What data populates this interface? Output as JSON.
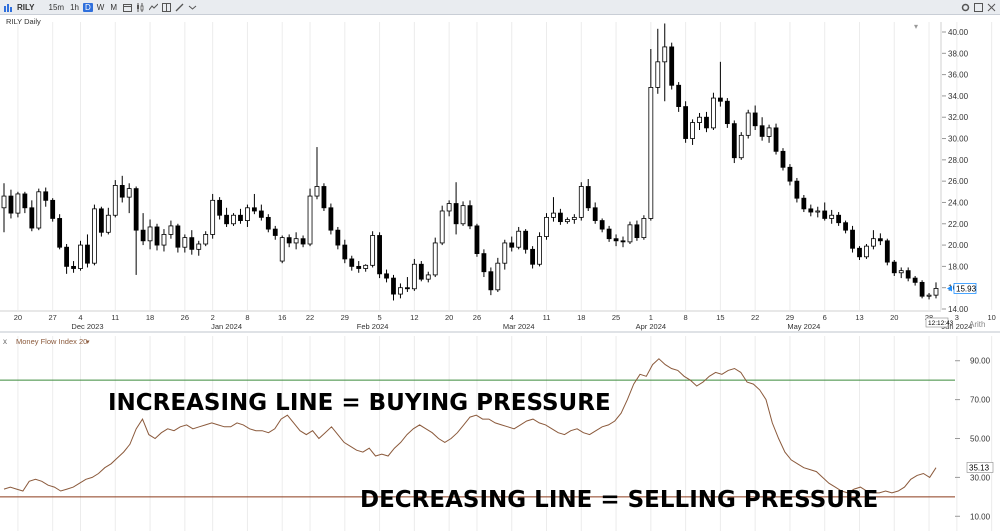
{
  "toolbar": {
    "symbol": "RILY",
    "intervals": [
      "15m",
      "1h",
      "D",
      "W",
      "M"
    ],
    "active_interval": "D"
  },
  "price_panel": {
    "title": "RILY Daily",
    "last_price": "15.93",
    "timestamp": "12:12:43",
    "scale_label": "Arith",
    "colors": {
      "up": "#ffffff",
      "down": "#000000",
      "current_marker": "#1e90ff"
    }
  },
  "mfi_panel": {
    "title": "Money Flow Index 20",
    "last_value": "35.13",
    "overbought": 80,
    "oversold": 20,
    "colors": {
      "line": "#8b5a3c",
      "overbought": "#3a8a3a",
      "oversold": "#8b3a1a"
    }
  },
  "annotations": {
    "buying": "INCREASING LINE = BUYING PRESSURE",
    "selling": "DECREASING LINE = SELLING PRESSURE"
  },
  "chart_data": [
    {
      "type": "candlestick",
      "title": "RILY Daily",
      "ylim": [
        14,
        40
      ],
      "y_ticks": [
        "40.00",
        "38.00",
        "36.00",
        "34.00",
        "32.00",
        "30.00",
        "28.00",
        "26.00",
        "24.00",
        "22.00",
        "20.00",
        "18.00",
        "16.00",
        "14.00"
      ],
      "x_tick_labels": [
        {
          "d": 2,
          "label": "20"
        },
        {
          "d": 7,
          "label": "27"
        },
        {
          "d": 11,
          "label": "4"
        },
        {
          "d": 16,
          "label": "11"
        },
        {
          "d": 21,
          "label": "18"
        },
        {
          "d": 26,
          "label": "26"
        },
        {
          "d": 30,
          "label": "2"
        },
        {
          "d": 35,
          "label": "8"
        },
        {
          "d": 40,
          "label": "16"
        },
        {
          "d": 44,
          "label": "22"
        },
        {
          "d": 49,
          "label": "29"
        },
        {
          "d": 54,
          "label": "5"
        },
        {
          "d": 59,
          "label": "12"
        },
        {
          "d": 64,
          "label": "20"
        },
        {
          "d": 68,
          "label": "26"
        },
        {
          "d": 73,
          "label": "4"
        },
        {
          "d": 78,
          "label": "11"
        },
        {
          "d": 83,
          "label": "18"
        },
        {
          "d": 88,
          "label": "25"
        },
        {
          "d": 93,
          "label": "1"
        },
        {
          "d": 98,
          "label": "8"
        },
        {
          "d": 103,
          "label": "15"
        },
        {
          "d": 108,
          "label": "22"
        },
        {
          "d": 113,
          "label": "29"
        },
        {
          "d": 118,
          "label": "6"
        },
        {
          "d": 123,
          "label": "13"
        },
        {
          "d": 128,
          "label": "20"
        },
        {
          "d": 133,
          "label": "28"
        },
        {
          "d": 137,
          "label": "3"
        },
        {
          "d": 142,
          "label": "10"
        },
        {
          "d": 147,
          "label": "17"
        },
        {
          "d": 152,
          "label": "24"
        },
        {
          "d": 157,
          "label": "1"
        }
      ],
      "month_labels": [
        {
          "d": 12,
          "label": "Dec 2023"
        },
        {
          "d": 32,
          "label": "Jan 2024"
        },
        {
          "d": 53,
          "label": "Feb 2024"
        },
        {
          "d": 74,
          "label": "Mar 2024"
        },
        {
          "d": 93,
          "label": "Apr 2024"
        },
        {
          "d": 115,
          "label": "May 2024"
        },
        {
          "d": 137,
          "label": "Jun 2024"
        }
      ],
      "candles": [
        [
          23.5,
          25.8,
          21.2,
          24.6
        ],
        [
          24.6,
          25.2,
          22.5,
          23.0
        ],
        [
          23.0,
          25.0,
          22.6,
          24.8
        ],
        [
          24.8,
          25.0,
          23.0,
          23.5
        ],
        [
          23.5,
          24.2,
          21.3,
          21.6
        ],
        [
          21.6,
          25.3,
          21.4,
          25.0
        ],
        [
          25.0,
          25.4,
          23.6,
          24.2
        ],
        [
          24.2,
          24.4,
          22.2,
          22.5
        ],
        [
          22.5,
          22.9,
          19.6,
          19.8
        ],
        [
          19.8,
          20.1,
          17.3,
          18.0
        ],
        [
          18.0,
          18.5,
          17.4,
          17.8
        ],
        [
          17.8,
          20.4,
          17.6,
          20.0
        ],
        [
          20.0,
          21.0,
          17.9,
          18.3
        ],
        [
          18.3,
          23.8,
          18.1,
          23.4
        ],
        [
          23.4,
          23.6,
          20.8,
          21.2
        ],
        [
          21.2,
          23.5,
          21.0,
          22.8
        ],
        [
          22.8,
          26.1,
          22.6,
          25.6
        ],
        [
          25.6,
          26.5,
          24.0,
          24.5
        ],
        [
          24.5,
          25.8,
          23.0,
          25.3
        ],
        [
          25.3,
          25.5,
          17.2,
          21.4
        ],
        [
          21.4,
          23.0,
          20.0,
          20.4
        ],
        [
          20.4,
          22.4,
          19.6,
          21.7
        ],
        [
          21.7,
          22.0,
          19.5,
          20.0
        ],
        [
          20.0,
          21.5,
          19.4,
          21.0
        ],
        [
          21.0,
          22.3,
          20.6,
          21.8
        ],
        [
          21.8,
          22.0,
          19.3,
          19.8
        ],
        [
          19.8,
          21.0,
          19.3,
          20.7
        ],
        [
          20.7,
          21.4,
          19.1,
          19.6
        ],
        [
          19.6,
          20.4,
          19.0,
          20.1
        ],
        [
          20.1,
          21.3,
          19.9,
          21.0
        ],
        [
          21.0,
          24.8,
          20.6,
          24.2
        ],
        [
          24.2,
          24.5,
          22.4,
          22.8
        ],
        [
          22.8,
          23.5,
          21.7,
          22.0
        ],
        [
          22.0,
          23.0,
          21.8,
          22.8
        ],
        [
          22.8,
          23.4,
          22.0,
          22.3
        ],
        [
          22.3,
          23.8,
          21.7,
          23.5
        ],
        [
          23.5,
          24.8,
          22.9,
          23.2
        ],
        [
          23.2,
          23.8,
          22.3,
          22.6
        ],
        [
          22.6,
          22.9,
          21.2,
          21.5
        ],
        [
          21.5,
          21.8,
          20.5,
          20.9
        ],
        [
          18.5,
          20.9,
          18.3,
          20.7
        ],
        [
          20.7,
          21.0,
          19.8,
          20.2
        ],
        [
          20.2,
          21.2,
          19.6,
          20.6
        ],
        [
          20.6,
          20.9,
          19.8,
          20.1
        ],
        [
          20.1,
          25.3,
          19.9,
          24.6
        ],
        [
          24.6,
          29.2,
          24.3,
          25.5
        ],
        [
          25.5,
          25.8,
          23.2,
          23.5
        ],
        [
          23.5,
          23.9,
          21.0,
          21.4
        ],
        [
          21.4,
          21.7,
          19.6,
          20.0
        ],
        [
          20.0,
          20.5,
          18.3,
          18.7
        ],
        [
          18.7,
          19.0,
          17.6,
          18.0
        ],
        [
          18.0,
          18.5,
          17.4,
          17.8
        ],
        [
          17.8,
          18.2,
          17.5,
          18.1
        ],
        [
          18.1,
          21.3,
          17.9,
          20.9
        ],
        [
          20.9,
          21.2,
          16.9,
          17.3
        ],
        [
          17.3,
          17.7,
          16.5,
          16.9
        ],
        [
          16.9,
          17.2,
          14.8,
          15.4
        ],
        [
          15.4,
          16.4,
          15.0,
          16.0
        ],
        [
          16.0,
          17.0,
          15.6,
          15.9
        ],
        [
          15.9,
          18.7,
          15.7,
          18.2
        ],
        [
          18.2,
          18.5,
          16.6,
          16.8
        ],
        [
          16.8,
          17.5,
          16.5,
          17.2
        ],
        [
          17.2,
          20.7,
          17.0,
          20.2
        ],
        [
          20.2,
          23.7,
          20.0,
          23.2
        ],
        [
          23.2,
          24.2,
          22.7,
          23.9
        ],
        [
          23.9,
          25.9,
          21.0,
          22.0
        ],
        [
          22.0,
          24.1,
          21.8,
          23.7
        ],
        [
          23.7,
          24.2,
          21.5,
          21.8
        ],
        [
          21.8,
          22.0,
          18.9,
          19.2
        ],
        [
          19.2,
          19.6,
          17.0,
          17.5
        ],
        [
          17.5,
          17.9,
          15.3,
          15.8
        ],
        [
          15.8,
          18.8,
          15.6,
          18.3
        ],
        [
          18.3,
          20.5,
          17.7,
          20.2
        ],
        [
          20.2,
          20.8,
          19.4,
          19.8
        ],
        [
          19.8,
          21.7,
          19.6,
          21.3
        ],
        [
          21.3,
          21.5,
          19.2,
          19.6
        ],
        [
          19.6,
          19.9,
          17.8,
          18.2
        ],
        [
          18.2,
          21.2,
          18.0,
          20.8
        ],
        [
          20.8,
          23.0,
          20.5,
          22.6
        ],
        [
          22.6,
          24.5,
          22.2,
          23.0
        ],
        [
          23.0,
          23.4,
          21.9,
          22.2
        ],
        [
          22.2,
          22.6,
          22.0,
          22.4
        ],
        [
          22.4,
          22.9,
          22.0,
          22.6
        ],
        [
          22.6,
          25.9,
          22.3,
          25.5
        ],
        [
          25.5,
          26.2,
          23.2,
          23.5
        ],
        [
          23.5,
          24.0,
          22.0,
          22.3
        ],
        [
          22.3,
          22.5,
          21.2,
          21.5
        ],
        [
          21.5,
          21.8,
          20.3,
          20.6
        ],
        [
          20.6,
          21.0,
          19.9,
          20.4
        ],
        [
          20.4,
          20.8,
          19.8,
          20.3
        ],
        [
          20.3,
          22.2,
          20.1,
          21.9
        ],
        [
          21.9,
          22.3,
          20.4,
          20.7
        ],
        [
          20.7,
          22.8,
          20.5,
          22.5
        ],
        [
          22.5,
          38.4,
          22.3,
          34.8
        ],
        [
          34.8,
          40.3,
          34.2,
          37.2
        ],
        [
          37.2,
          40.8,
          33.5,
          38.6
        ],
        [
          38.6,
          39.0,
          34.6,
          35.0
        ],
        [
          35.0,
          35.3,
          32.5,
          33.0
        ],
        [
          33.0,
          33.5,
          29.6,
          30.0
        ],
        [
          30.0,
          31.8,
          29.4,
          31.5
        ],
        [
          31.5,
          32.4,
          30.8,
          32.0
        ],
        [
          32.0,
          32.5,
          30.6,
          31.0
        ],
        [
          31.0,
          34.3,
          30.8,
          33.8
        ],
        [
          33.8,
          37.2,
          33.0,
          33.5
        ],
        [
          33.5,
          33.8,
          31.0,
          31.4
        ],
        [
          31.4,
          31.7,
          27.7,
          28.2
        ],
        [
          28.2,
          30.6,
          28.0,
          30.3
        ],
        [
          30.3,
          32.7,
          30.0,
          32.4
        ],
        [
          32.4,
          33.1,
          30.8,
          31.2
        ],
        [
          31.2,
          32.0,
          29.8,
          30.2
        ],
        [
          30.2,
          31.3,
          29.6,
          31.0
        ],
        [
          31.0,
          31.4,
          28.5,
          28.8
        ],
        [
          28.8,
          29.1,
          27.0,
          27.3
        ],
        [
          27.3,
          27.6,
          25.6,
          26.0
        ],
        [
          26.0,
          26.3,
          24.0,
          24.4
        ],
        [
          24.4,
          24.7,
          23.1,
          23.4
        ],
        [
          23.4,
          23.8,
          22.7,
          23.1
        ],
        [
          23.1,
          23.6,
          22.6,
          23.2
        ],
        [
          23.2,
          24.0,
          22.3,
          22.5
        ],
        [
          22.5,
          23.3,
          22.0,
          22.8
        ],
        [
          22.8,
          23.1,
          21.8,
          22.1
        ],
        [
          22.1,
          22.3,
          21.1,
          21.4
        ],
        [
          21.4,
          21.8,
          19.3,
          19.7
        ],
        [
          19.7,
          19.9,
          18.6,
          18.9
        ],
        [
          18.9,
          20.1,
          18.7,
          19.9
        ],
        [
          19.9,
          21.4,
          19.6,
          20.6
        ],
        [
          20.6,
          21.1,
          20.0,
          20.4
        ],
        [
          20.4,
          20.6,
          18.1,
          18.4
        ],
        [
          18.4,
          18.6,
          17.1,
          17.4
        ],
        [
          17.4,
          17.9,
          16.9,
          17.6
        ],
        [
          17.6,
          17.9,
          16.6,
          16.9
        ],
        [
          16.9,
          17.1,
          16.2,
          16.5
        ],
        [
          16.5,
          16.7,
          15.0,
          15.2
        ],
        [
          15.2,
          15.5,
          14.9,
          15.3
        ],
        [
          15.3,
          16.5,
          15.0,
          15.93
        ]
      ]
    },
    {
      "type": "line",
      "title": "Money Flow Index 20",
      "ylim": [
        5,
        95
      ],
      "y_ticks": [
        "90.00",
        "70.00",
        "50.00",
        "30.00",
        "10.00"
      ],
      "reference_lines": [
        80,
        20
      ],
      "series": [
        {
          "values": [
            24,
            25,
            24,
            23,
            28,
            29,
            28,
            26,
            25,
            23,
            24,
            25,
            27,
            29,
            30,
            32,
            35,
            37,
            40,
            43,
            47,
            55,
            60,
            52,
            50,
            53,
            55,
            54,
            56,
            57,
            55,
            56,
            57,
            58,
            57,
            56,
            56,
            58,
            57,
            55,
            54,
            54,
            53,
            55,
            60,
            62,
            58,
            54,
            52,
            54,
            50,
            53,
            56,
            52,
            48,
            46,
            44,
            43,
            45,
            41,
            42,
            41,
            45,
            48,
            52,
            55,
            57,
            55,
            53,
            50,
            48,
            50,
            53,
            57,
            61,
            62,
            60,
            60,
            58,
            57,
            56,
            55,
            57,
            59,
            60,
            58,
            57,
            55,
            53,
            52,
            54,
            55,
            53,
            52,
            54,
            56,
            57,
            59,
            63,
            70,
            78,
            83,
            82,
            88,
            91,
            88,
            86,
            85,
            82,
            80,
            77,
            79,
            82,
            84,
            83,
            85,
            86,
            84,
            79,
            78,
            75,
            70,
            58,
            50,
            43,
            39,
            37,
            35,
            34,
            33,
            30,
            27,
            25,
            23,
            22,
            24,
            25,
            23,
            22,
            22,
            23,
            22,
            23,
            25,
            29,
            31,
            32,
            30,
            35
          ]
        }
      ]
    }
  ]
}
